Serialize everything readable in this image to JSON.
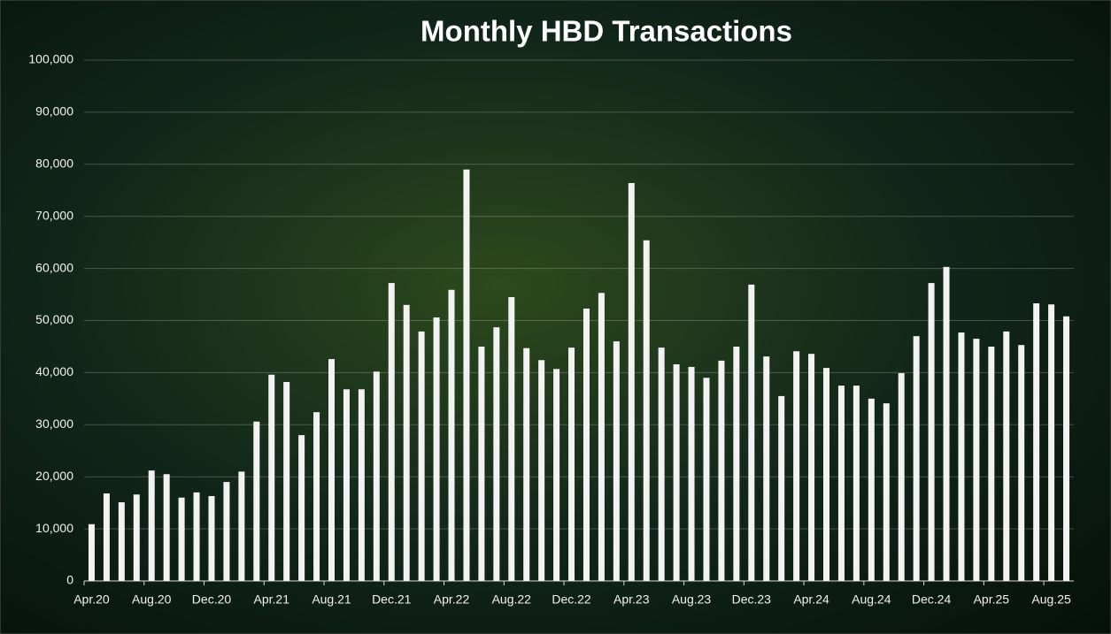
{
  "chart_data": {
    "type": "bar",
    "title": "Monthly HBD Transactions",
    "categories": [
      "Apr.20",
      null,
      null,
      null,
      "Aug.20",
      null,
      null,
      null,
      "Dec.20",
      null,
      null,
      null,
      "Apr.21",
      null,
      null,
      null,
      "Aug.21",
      null,
      null,
      null,
      "Dec.21",
      null,
      null,
      null,
      "Apr.22",
      null,
      null,
      null,
      "Aug.22",
      null,
      null,
      null,
      "Dec.22",
      null,
      null,
      null,
      "Apr.23",
      null,
      null,
      null,
      "Aug.23",
      null,
      null,
      null,
      "Dec.23",
      null,
      null,
      null,
      "Apr.24",
      null,
      null,
      null,
      "Aug.24",
      null,
      null,
      null,
      "Dec.24",
      null,
      null,
      null,
      "Apr.25",
      null,
      null,
      null,
      "Aug.25",
      null
    ],
    "values": [
      10900,
      16800,
      15100,
      16600,
      21200,
      20500,
      16000,
      17000,
      16300,
      19000,
      21000,
      30600,
      39600,
      38200,
      28000,
      32400,
      42600,
      36800,
      36800,
      40200,
      57200,
      53000,
      47900,
      50600,
      55900,
      79000,
      45000,
      48700,
      54500,
      44700,
      42400,
      40700,
      44800,
      52300,
      55300,
      46000,
      76400,
      65400,
      44800,
      41600,
      41100,
      39000,
      42300,
      45000,
      56900,
      43100,
      35500,
      44100,
      43600,
      40900,
      37500,
      37500,
      35000,
      34100,
      39900,
      47000,
      57200,
      60300,
      47700,
      46500,
      45000,
      47900,
      45300,
      53300,
      53100,
      50800
    ],
    "color": "#f2f2f2",
    "ylim": [
      0,
      100000
    ],
    "yticks": [
      0,
      {
        "value": 10000,
        "label": "10,000"
      },
      {
        "value": 20000,
        "label": "20,000"
      },
      {
        "value": 30000,
        "label": "30,000"
      },
      {
        "value": 40000,
        "label": "40,000"
      },
      {
        "value": 50000,
        "label": "50,000"
      },
      {
        "value": 60000,
        "label": "60,000"
      },
      {
        "value": 70000,
        "label": "70,000"
      },
      {
        "value": 80000,
        "label": "80,000"
      },
      {
        "value": 90000,
        "label": "90,000"
      },
      {
        "value": 100000,
        "label": "100,000"
      }
    ],
    "grid": true
  }
}
